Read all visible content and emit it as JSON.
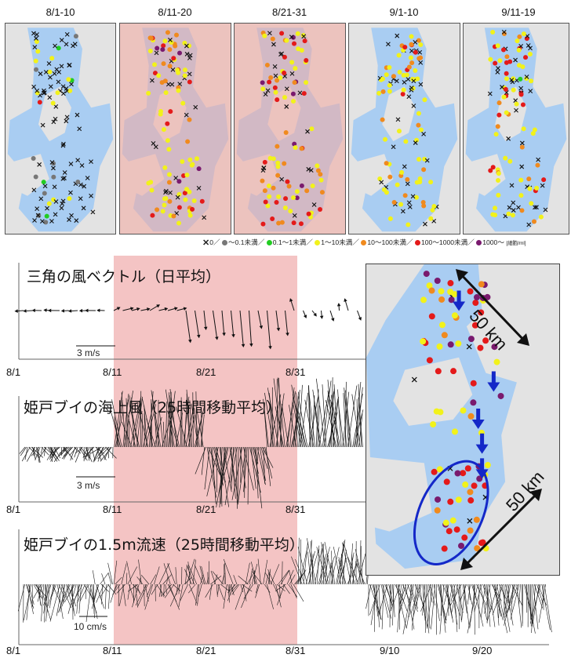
{
  "periods": [
    "8/1-10",
    "8/11-20",
    "8/21-31",
    "9/1-10",
    "9/11-19"
  ],
  "legend": {
    "items": [
      {
        "marker": "cross",
        "label": "0／",
        "color": "#111111"
      },
      {
        "marker": "dot",
        "label": "～0.1未満／",
        "color": "#777777"
      },
      {
        "marker": "dot",
        "label": "0.1～1未満／",
        "color": "#22cc22"
      },
      {
        "marker": "dot",
        "label": "1～10未満／",
        "color": "#f2f21a"
      },
      {
        "marker": "dot",
        "label": "10～100未満／",
        "color": "#f08a1e"
      },
      {
        "marker": "dot",
        "label": "100～1000未満／",
        "color": "#e41a1a"
      },
      {
        "marker": "dot",
        "label": "1000～",
        "color": "#7a1a6e"
      }
    ],
    "unit": "[細胞/ml]"
  },
  "panels": [
    {
      "title": "三角の風ベクトル（日平均）",
      "scale": "3 m/s"
    },
    {
      "title": "姫戸ブイの海上風（25時間移動平均）",
      "scale": "3 m/s"
    },
    {
      "title": "姫戸ブイの1.5m流速（25時間移動平均）",
      "scale": "10 cm/s"
    }
  ],
  "dates_short": [
    "8/1",
    "8/11",
    "8/21",
    "8/31"
  ],
  "dates_long": [
    "8/1",
    "8/11",
    "8/21",
    "8/31",
    "9/10",
    "9/20"
  ],
  "inset": {
    "scale_top": "50 km",
    "scale_bottom": "50 km"
  },
  "colors": {
    "sea": "#a9cdf2",
    "land": "#e3e3e3",
    "highlight": "#f4c4c4",
    "arrow": "#1428c8",
    "ellipse": "#1428c8"
  }
}
